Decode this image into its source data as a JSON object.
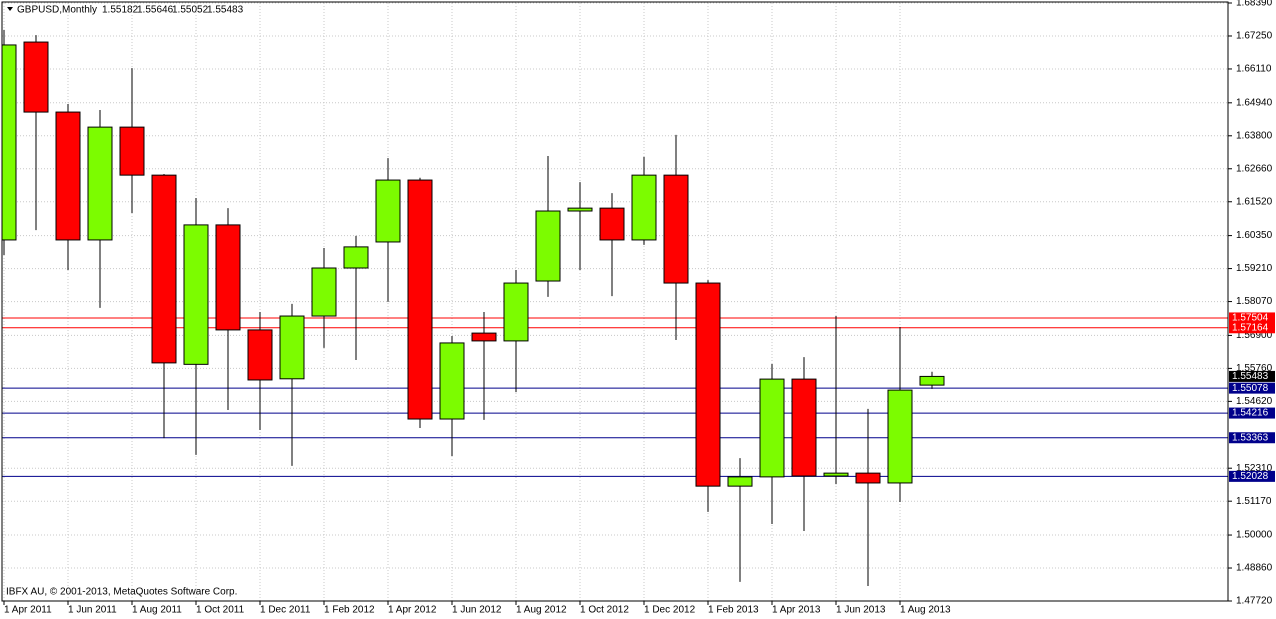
{
  "chart_data": {
    "type": "candlestick",
    "title": "GBPUSD,Monthly",
    "footer": "IBFX AU, © 2001-2013, MetaQuotes Software Corp.",
    "x": [
      "1 Apr 2011",
      null,
      "1 Jun 2011",
      null,
      "1 Aug 2011",
      null,
      "1 Oct 2011",
      null,
      "1 Dec 2011",
      null,
      "1 Feb 2012",
      null,
      "1 Apr 2012",
      null,
      "1 Jun 2012",
      null,
      "1 Aug 2012",
      null,
      "1 Oct 2012",
      null,
      "1 Dec 2012",
      null,
      "1 Feb 2013",
      null,
      "1 Apr 2013",
      null,
      "1 Jun 2013",
      null,
      "1 Aug 2013",
      null
    ],
    "open": [
      1.602,
      1.6704,
      1.6462,
      1.602,
      1.641,
      1.6244,
      1.559,
      1.6072,
      1.5709,
      1.554,
      1.5757,
      1.5923,
      1.6013,
      1.6227,
      1.5401,
      1.5698,
      1.5671,
      1.5878,
      1.612,
      1.613,
      1.602,
      1.6244,
      1.5871,
      1.5169,
      1.5201,
      1.5539,
      1.5204,
      1.5214,
      1.518,
      1.55182
    ],
    "high": [
      1.6746,
      1.6728,
      1.649,
      1.6469,
      1.6614,
      1.6248,
      1.6165,
      1.613,
      1.5771,
      1.5799,
      1.5992,
      1.6034,
      1.6303,
      1.6235,
      1.5688,
      1.5771,
      1.5916,
      1.631,
      1.622,
      1.6182,
      1.6307,
      1.6383,
      1.5881,
      1.5266,
      1.5591,
      1.5615,
      1.5757,
      1.5436,
      1.5719,
      1.55646
    ],
    "low": [
      1.5968,
      1.6054,
      1.5916,
      1.5785,
      1.6113,
      1.5335,
      1.5277,
      1.5432,
      1.5363,
      1.5239,
      1.5647,
      1.5605,
      1.5806,
      1.537,
      1.5273,
      1.5398,
      1.5494,
      1.5823,
      1.5916,
      1.5826,
      1.6003,
      1.5674,
      1.508,
      1.4838,
      1.5038,
      1.5014,
      1.5176,
      1.4824,
      1.5114,
      1.55052
    ],
    "close": [
      1.6694,
      1.6462,
      1.602,
      1.641,
      1.6244,
      1.5595,
      1.6072,
      1.5709,
      1.5536,
      1.5757,
      1.5923,
      1.5996,
      1.6227,
      1.5401,
      1.5664,
      1.5671,
      1.5871,
      1.612,
      1.613,
      1.602,
      1.6244,
      1.5871,
      1.5169,
      1.5201,
      1.5539,
      1.5204,
      1.5214,
      1.518,
      1.5501,
      1.55483
    ],
    "up_color": "#7cfc00",
    "down_color": "#ff0000",
    "ylim": [
      1.4772,
      1.6839
    ],
    "yticks": [
      {
        "value": 1.6839,
        "label": "1.68390"
      },
      {
        "value": 1.6725,
        "label": "1.67250"
      },
      {
        "value": 1.6611,
        "label": "1.66110"
      },
      {
        "value": 1.6494,
        "label": "1.64940"
      },
      {
        "value": 1.638,
        "label": "1.63800"
      },
      {
        "value": 1.6266,
        "label": "1.62660"
      },
      {
        "value": 1.6152,
        "label": "1.61520"
      },
      {
        "value": 1.6035,
        "label": "1.60350"
      },
      {
        "value": 1.5921,
        "label": "1.59210"
      },
      {
        "value": 1.5807,
        "label": "1.58070"
      },
      {
        "value": 1.569,
        "label": "1.56900"
      },
      {
        "value": 1.5576,
        "label": "1.55760"
      },
      {
        "value": 1.5462,
        "label": "1.54620"
      },
      {
        "value": 1.5231,
        "label": "1.52310"
      },
      {
        "value": 1.5117,
        "label": "1.51170"
      },
      {
        "value": 1.5,
        "label": "1.50000"
      },
      {
        "value": 1.4886,
        "label": "1.48860"
      },
      {
        "value": 1.4772,
        "label": "1.47720"
      }
    ],
    "levels": [
      {
        "value": 1.57504,
        "color": "#ff0000"
      },
      {
        "value": 1.57164,
        "color": "#ff0000"
      },
      {
        "value": 1.55078,
        "color": "#00008b"
      },
      {
        "value": 1.54216,
        "color": "#00008b"
      },
      {
        "value": 1.53363,
        "color": "#00008b"
      },
      {
        "value": 1.52028,
        "color": "#00008b"
      }
    ],
    "grid": true
  }
}
